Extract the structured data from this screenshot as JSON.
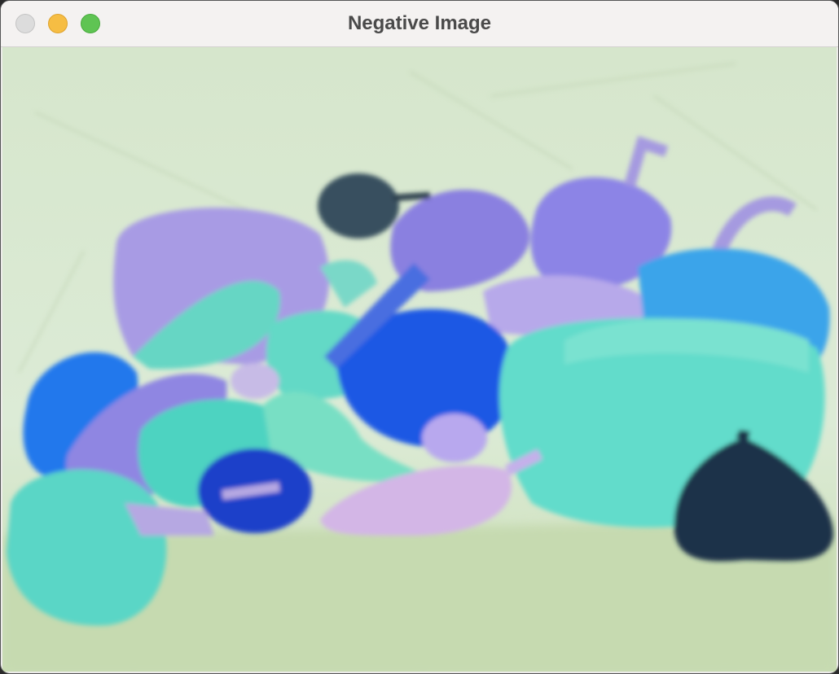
{
  "window": {
    "title": "Negative Image"
  }
}
